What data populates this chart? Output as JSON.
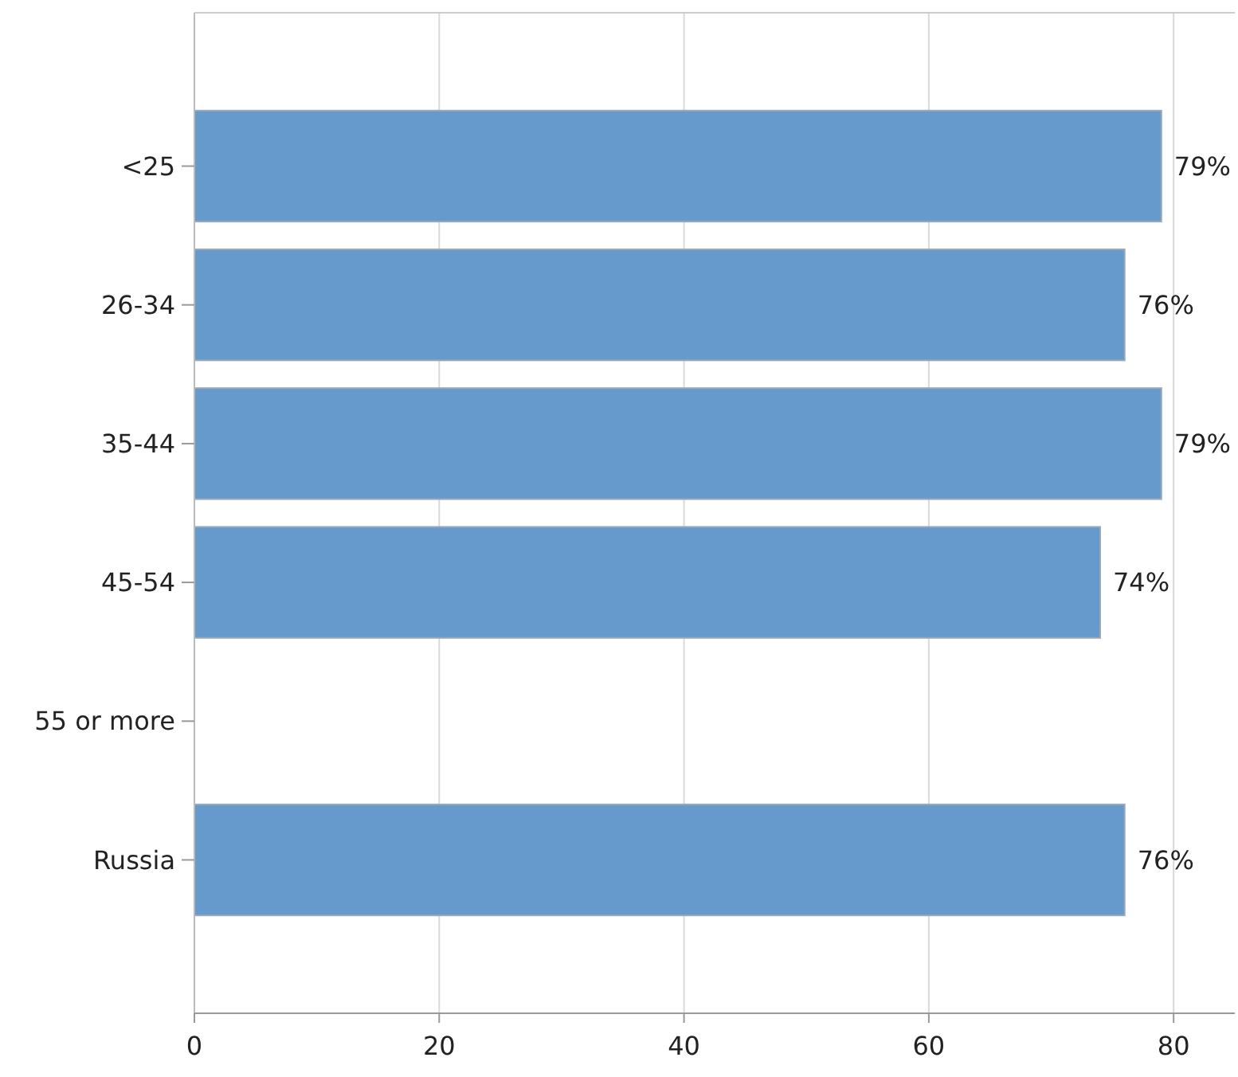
{
  "chart_data": {
    "type": "bar",
    "orientation": "horizontal",
    "categories": [
      "<25",
      "26-34",
      "35-44",
      "45-54",
      "55 or more",
      "Russia"
    ],
    "values": [
      79,
      76,
      79,
      74,
      null,
      76
    ],
    "value_labels": [
      "79%",
      "76%",
      "79%",
      "74%",
      null,
      "76%"
    ],
    "color": "#6699cc",
    "xlim": [
      0,
      85
    ],
    "xticks": [
      0,
      20,
      40,
      60,
      80
    ],
    "grid": "x"
  }
}
